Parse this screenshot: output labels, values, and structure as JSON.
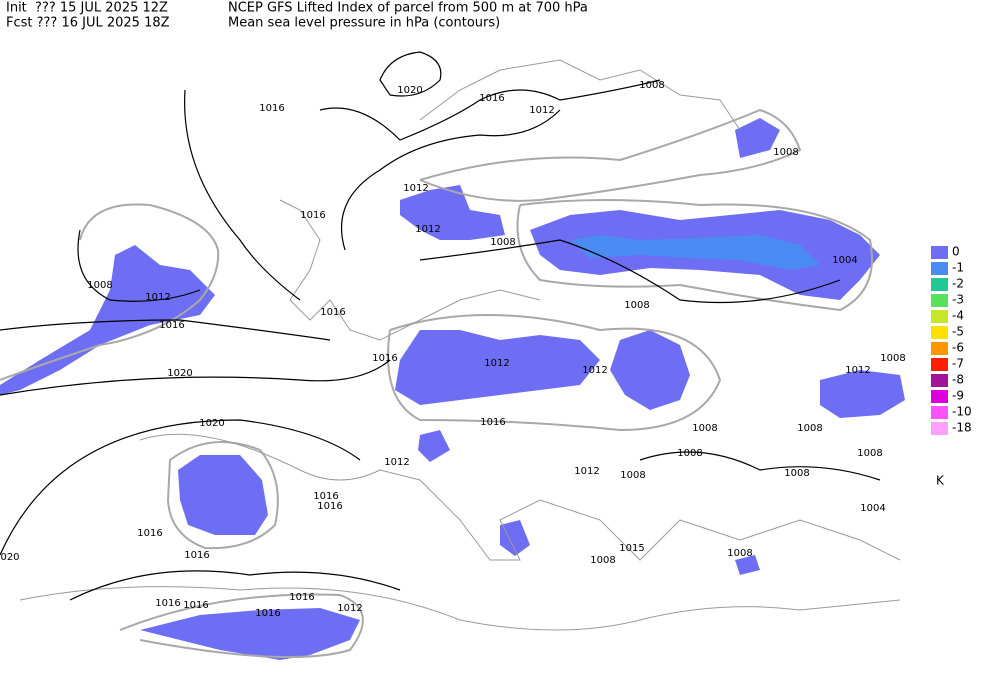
{
  "header": {
    "init": "Init  ??? 15 JUL 2025 12Z",
    "fcst": "Fcst ??? 16 JUL 2025 18Z",
    "title": "NCEP GFS Lifted Index of parcel from 500 m at 700 hPa",
    "subtitle": "Mean sea level pressure in hPa (contours)"
  },
  "legend": {
    "unit": "K",
    "items": [
      {
        "label": "0",
        "color": "#6e6ef4"
      },
      {
        "label": "-1",
        "color": "#4a8cf4"
      },
      {
        "label": "-2",
        "color": "#20c896"
      },
      {
        "label": "-3",
        "color": "#5ae05a"
      },
      {
        "label": "-4",
        "color": "#c8e628"
      },
      {
        "label": "-5",
        "color": "#ffe100"
      },
      {
        "label": "-6",
        "color": "#ff9600"
      },
      {
        "label": "-7",
        "color": "#ff1e00"
      },
      {
        "label": "-8",
        "color": "#a0149b"
      },
      {
        "label": "-9",
        "color": "#dc00dc"
      },
      {
        "label": "-10",
        "color": "#ff50ff"
      },
      {
        "label": "-18",
        "color": "#ffa0ff"
      }
    ]
  },
  "contour_labels": [
    "1020",
    "1016",
    "1012",
    "1008",
    "1016",
    "1008",
    "1012",
    "1016",
    "1012",
    "1008",
    "1008",
    "1012",
    "1016",
    "1004",
    "1016",
    "1008",
    "1016",
    "1012",
    "1012",
    "1008",
    "1012",
    "1020",
    "1020",
    "1016",
    "1012",
    "1008",
    "1008",
    "1008",
    "1008",
    "1012",
    "1008",
    "1008",
    "1016",
    "1016",
    "1016",
    "1016",
    "020",
    "1015",
    "1008",
    "1008",
    "1004",
    "1016",
    "1016",
    "1016",
    "1016",
    "1012"
  ]
}
